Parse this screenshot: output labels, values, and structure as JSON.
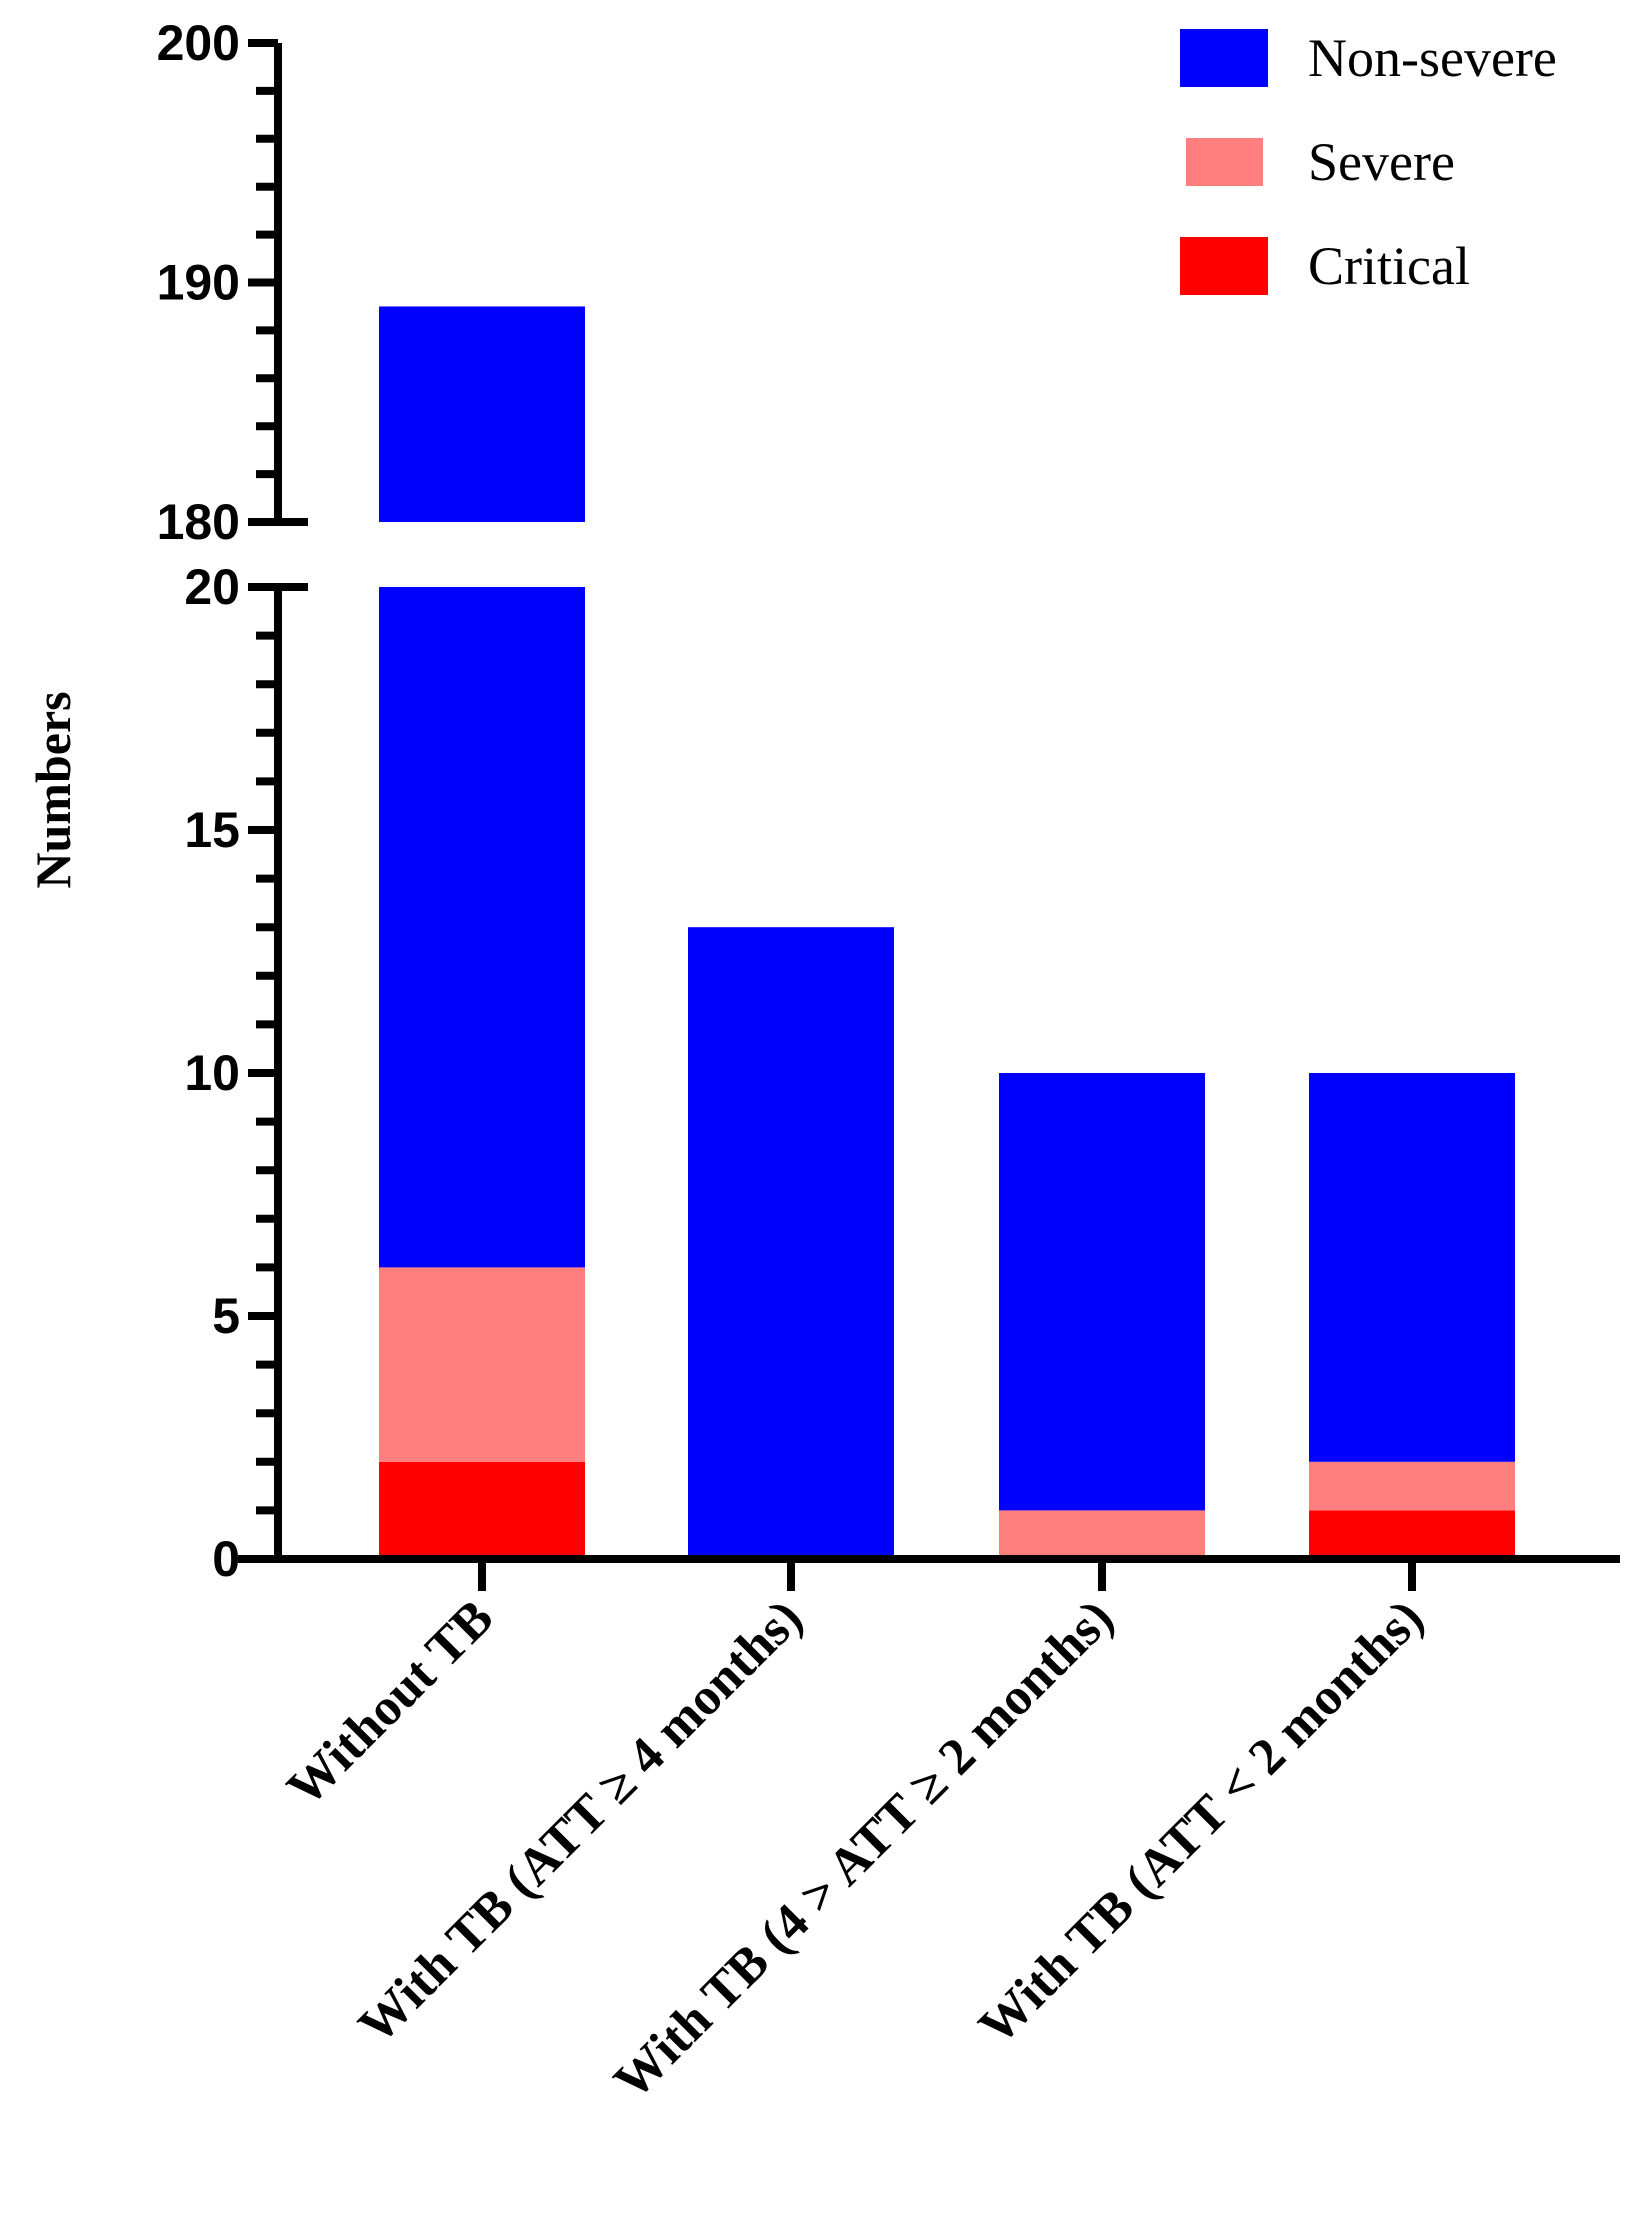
{
  "chart_data": {
    "type": "bar",
    "stacked": true,
    "title": "",
    "xlabel": "",
    "ylabel": "Numbers",
    "categories": [
      "Without TB",
      "With TB (ATT ≥ 4 months)",
      "With TB (4 > ATT ≥ 2 months)",
      "With TB (ATT < 2 months)"
    ],
    "series": [
      {
        "name": "Critical",
        "color": "#ff0000",
        "values": [
          2,
          0,
          0,
          1
        ]
      },
      {
        "name": "Severe",
        "color": "#ff7f7f",
        "values": [
          4,
          0,
          1,
          1
        ]
      },
      {
        "name": "Non-severe",
        "color": "#0000ff",
        "values": [
          183,
          13,
          9,
          8
        ]
      }
    ],
    "totals": [
      189,
      13,
      10,
      10
    ],
    "y_axis": {
      "broken": true,
      "segments": [
        {
          "range": [
            0,
            20
          ],
          "major_ticks": [
            0,
            5,
            10,
            15,
            20
          ],
          "minor_step": 1
        },
        {
          "range": [
            180,
            200
          ],
          "major_ticks": [
            180,
            190,
            200
          ],
          "minor_step": 2
        }
      ]
    },
    "legend": {
      "position": "top-right",
      "entries": [
        {
          "label": "Non-severe",
          "color": "#0000ff"
        },
        {
          "label": "Severe",
          "color": "#ff7f7f"
        },
        {
          "label": "Critical",
          "color": "#ff0000"
        }
      ]
    },
    "grid": false
  }
}
